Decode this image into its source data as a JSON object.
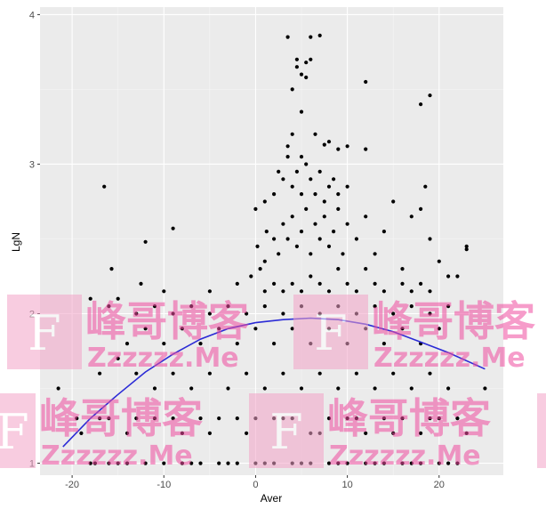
{
  "chart_data": {
    "type": "scatter",
    "title": "",
    "xlabel": "Aver",
    "ylabel": "LgN",
    "xlim": [
      -23.5,
      27
    ],
    "ylim": [
      0.92,
      4.05
    ],
    "x_ticks": [
      -20,
      -10,
      0,
      10,
      20
    ],
    "y_ticks": [
      1,
      2,
      3,
      4
    ],
    "x_tick_labels": [
      "-20",
      "-10",
      "0",
      "10",
      "20"
    ],
    "y_tick_labels": [
      "1",
      "2",
      "3",
      "4"
    ],
    "grid": true,
    "legend": "none",
    "colors": {
      "panel": "#ebebeb",
      "grid_major": "#ffffff",
      "grid_minor": "#f5f5f5",
      "points": "#000000",
      "fit_line": "#2b2bd6"
    },
    "fit_curve": {
      "x": [
        -21,
        -18,
        -15,
        -12,
        -9,
        -6,
        -3,
        0,
        3,
        6,
        9,
        12,
        15,
        18,
        21,
        25
      ],
      "y": [
        1.11,
        1.3,
        1.46,
        1.61,
        1.73,
        1.83,
        1.9,
        1.94,
        1.96,
        1.97,
        1.96,
        1.93,
        1.88,
        1.81,
        1.74,
        1.63
      ]
    },
    "points": [
      [
        -21.5,
        1.5
      ],
      [
        -19.5,
        1.3
      ],
      [
        -17.5,
        1.0
      ],
      [
        -16,
        1.3
      ],
      [
        -14,
        1.2
      ],
      [
        -12,
        1.0
      ],
      [
        -9,
        1.3
      ],
      [
        -7,
        1.0
      ],
      [
        -5,
        1.2
      ],
      [
        -3,
        1.0
      ],
      [
        -1,
        1.2
      ],
      [
        1,
        1.0
      ],
      [
        3,
        1.3
      ],
      [
        5,
        1.0
      ],
      [
        7,
        1.2
      ],
      [
        9,
        1.0
      ],
      [
        11,
        1.3
      ],
      [
        13,
        1.0
      ],
      [
        15,
        1.2
      ],
      [
        17,
        1.0
      ],
      [
        19,
        1.3
      ],
      [
        21,
        1.0
      ],
      [
        23,
        1.2
      ],
      [
        -19,
        1.2
      ],
      [
        -17,
        1.3
      ],
      [
        -15,
        1.0
      ],
      [
        -13,
        1.3
      ],
      [
        -11,
        1.3
      ],
      [
        -8,
        1.2
      ],
      [
        -6,
        1.3
      ],
      [
        -4,
        1.3
      ],
      [
        -2,
        1.3
      ],
      [
        0,
        1.3
      ],
      [
        2,
        1.3
      ],
      [
        4,
        1.3
      ],
      [
        6,
        1.2
      ],
      [
        8,
        1.3
      ],
      [
        10,
        1.3
      ],
      [
        12,
        1.2
      ],
      [
        14,
        1.3
      ],
      [
        16,
        1.3
      ],
      [
        18,
        1.2
      ],
      [
        20,
        1.3
      ],
      [
        22,
        1.3
      ],
      [
        -18,
        1.0
      ],
      [
        -16,
        1.0
      ],
      [
        -14,
        1.0
      ],
      [
        -10,
        1.0
      ],
      [
        -8,
        1.0
      ],
      [
        -6,
        1.0
      ],
      [
        -4,
        1.0
      ],
      [
        -2,
        1.0
      ],
      [
        0,
        1.0
      ],
      [
        2,
        1.0
      ],
      [
        4,
        1.0
      ],
      [
        6,
        1.0
      ],
      [
        8,
        1.0
      ],
      [
        10,
        1.0
      ],
      [
        12,
        1.0
      ],
      [
        14,
        1.0
      ],
      [
        16,
        1.0
      ],
      [
        18,
        1.0
      ],
      [
        20,
        1.0
      ],
      [
        22,
        1.0
      ],
      [
        -17,
        1.6
      ],
      [
        -15,
        1.7
      ],
      [
        -13,
        1.6
      ],
      [
        -11,
        1.5
      ],
      [
        -9,
        1.6
      ],
      [
        -7,
        1.5
      ],
      [
        -5,
        1.6
      ],
      [
        -3,
        1.5
      ],
      [
        -1,
        1.6
      ],
      [
        1,
        1.5
      ],
      [
        3,
        1.6
      ],
      [
        5,
        1.5
      ],
      [
        7,
        1.6
      ],
      [
        9,
        1.5
      ],
      [
        11,
        1.6
      ],
      [
        13,
        1.5
      ],
      [
        15,
        1.6
      ],
      [
        17,
        1.5
      ],
      [
        19,
        1.6
      ],
      [
        21,
        1.5
      ],
      [
        25,
        1.5
      ],
      [
        -14,
        1.8
      ],
      [
        -12,
        1.9
      ],
      [
        -10,
        1.8
      ],
      [
        -8,
        1.9
      ],
      [
        -6,
        1.8
      ],
      [
        -4,
        1.9
      ],
      [
        -2,
        1.8
      ],
      [
        0,
        1.9
      ],
      [
        2,
        1.8
      ],
      [
        4,
        1.9
      ],
      [
        6,
        1.8
      ],
      [
        8,
        1.9
      ],
      [
        10,
        1.8
      ],
      [
        12,
        1.9
      ],
      [
        14,
        1.8
      ],
      [
        16,
        1.9
      ],
      [
        18,
        1.8
      ],
      [
        20,
        1.9
      ],
      [
        -16,
        2.05
      ],
      [
        -13,
        2.0
      ],
      [
        -11,
        2.05
      ],
      [
        -9,
        2.0
      ],
      [
        -7,
        2.05
      ],
      [
        -5,
        2.0
      ],
      [
        -3,
        2.05
      ],
      [
        -1,
        2.0
      ],
      [
        1,
        2.05
      ],
      [
        3,
        2.0
      ],
      [
        5,
        2.05
      ],
      [
        7,
        2.0
      ],
      [
        9,
        2.05
      ],
      [
        11,
        2.0
      ],
      [
        13,
        2.05
      ],
      [
        15,
        2.0
      ],
      [
        17,
        2.05
      ],
      [
        19,
        2.0
      ],
      [
        21,
        2.05
      ],
      [
        -18,
        2.1
      ],
      [
        -15,
        2.1
      ],
      [
        -12.5,
        2.2
      ],
      [
        -10,
        2.15
      ],
      [
        -5,
        2.15
      ],
      [
        -2,
        2.2
      ],
      [
        -0.5,
        2.25
      ],
      [
        0.5,
        2.3
      ],
      [
        1,
        2.15
      ],
      [
        2,
        2.2
      ],
      [
        3,
        2.15
      ],
      [
        4,
        2.2
      ],
      [
        5,
        2.15
      ],
      [
        6,
        2.25
      ],
      [
        7,
        2.2
      ],
      [
        8,
        2.15
      ],
      [
        9,
        2.3
      ],
      [
        10,
        2.2
      ],
      [
        11,
        2.15
      ],
      [
        12,
        2.3
      ],
      [
        13,
        2.2
      ],
      [
        14,
        2.15
      ],
      [
        16,
        2.2
      ],
      [
        17,
        2.15
      ],
      [
        18,
        2.2
      ],
      [
        19,
        2.15
      ],
      [
        22,
        2.25
      ],
      [
        -16.5,
        2.85
      ],
      [
        -15.7,
        2.3
      ],
      [
        -12,
        2.48
      ],
      [
        -9,
        2.57
      ],
      [
        0,
        2.7
      ],
      [
        0.2,
        2.45
      ],
      [
        1,
        2.35
      ],
      [
        1.2,
        2.55
      ],
      [
        2,
        2.5
      ],
      [
        2.5,
        2.4
      ],
      [
        3,
        2.6
      ],
      [
        3.5,
        2.5
      ],
      [
        4,
        2.65
      ],
      [
        4.5,
        2.45
      ],
      [
        5,
        2.55
      ],
      [
        5.5,
        2.7
      ],
      [
        6,
        2.4
      ],
      [
        6.5,
        2.6
      ],
      [
        7,
        2.5
      ],
      [
        7.5,
        2.65
      ],
      [
        8,
        2.45
      ],
      [
        8.5,
        2.55
      ],
      [
        9,
        2.7
      ],
      [
        9.5,
        2.4
      ],
      [
        10,
        2.6
      ],
      [
        11,
        2.5
      ],
      [
        12,
        2.65
      ],
      [
        13,
        2.4
      ],
      [
        14,
        2.55
      ],
      [
        15,
        2.75
      ],
      [
        16,
        2.3
      ],
      [
        17,
        2.65
      ],
      [
        18,
        2.7
      ],
      [
        18.5,
        2.85
      ],
      [
        19,
        2.5
      ],
      [
        20,
        2.35
      ],
      [
        21,
        2.25
      ],
      [
        23,
        2.45
      ],
      [
        23,
        2.43
      ],
      [
        1,
        2.75
      ],
      [
        2,
        2.8
      ],
      [
        2.5,
        2.95
      ],
      [
        3,
        2.9
      ],
      [
        3.5,
        3.05
      ],
      [
        4,
        2.85
      ],
      [
        4.5,
        2.95
      ],
      [
        5,
        2.8
      ],
      [
        5.5,
        3.0
      ],
      [
        6,
        2.9
      ],
      [
        6.5,
        2.8
      ],
      [
        7,
        2.95
      ],
      [
        7.5,
        2.75
      ],
      [
        8,
        2.85
      ],
      [
        8.5,
        2.9
      ],
      [
        9,
        2.8
      ],
      [
        10,
        2.85
      ],
      [
        3.5,
        3.12
      ],
      [
        4,
        3.2
      ],
      [
        5,
        3.05
      ],
      [
        6.5,
        3.2
      ],
      [
        7.5,
        3.13
      ],
      [
        8,
        3.15
      ],
      [
        9,
        3.1
      ],
      [
        10,
        3.12
      ],
      [
        12,
        3.1
      ],
      [
        5,
        3.35
      ],
      [
        4,
        3.5
      ],
      [
        5,
        3.6
      ],
      [
        5.5,
        3.58
      ],
      [
        4.5,
        3.7
      ],
      [
        5.5,
        3.68
      ],
      [
        6,
        3.7
      ],
      [
        6,
        3.85
      ],
      [
        7,
        3.86
      ],
      [
        3.5,
        3.85
      ],
      [
        4.5,
        3.65
      ],
      [
        12,
        3.55
      ],
      [
        18,
        3.4
      ],
      [
        19,
        3.46
      ]
    ]
  },
  "watermark": {
    "brand": "峰哥博客",
    "url": "Zzzzzz.Me",
    "letter": "F",
    "color": "#f04da0"
  }
}
